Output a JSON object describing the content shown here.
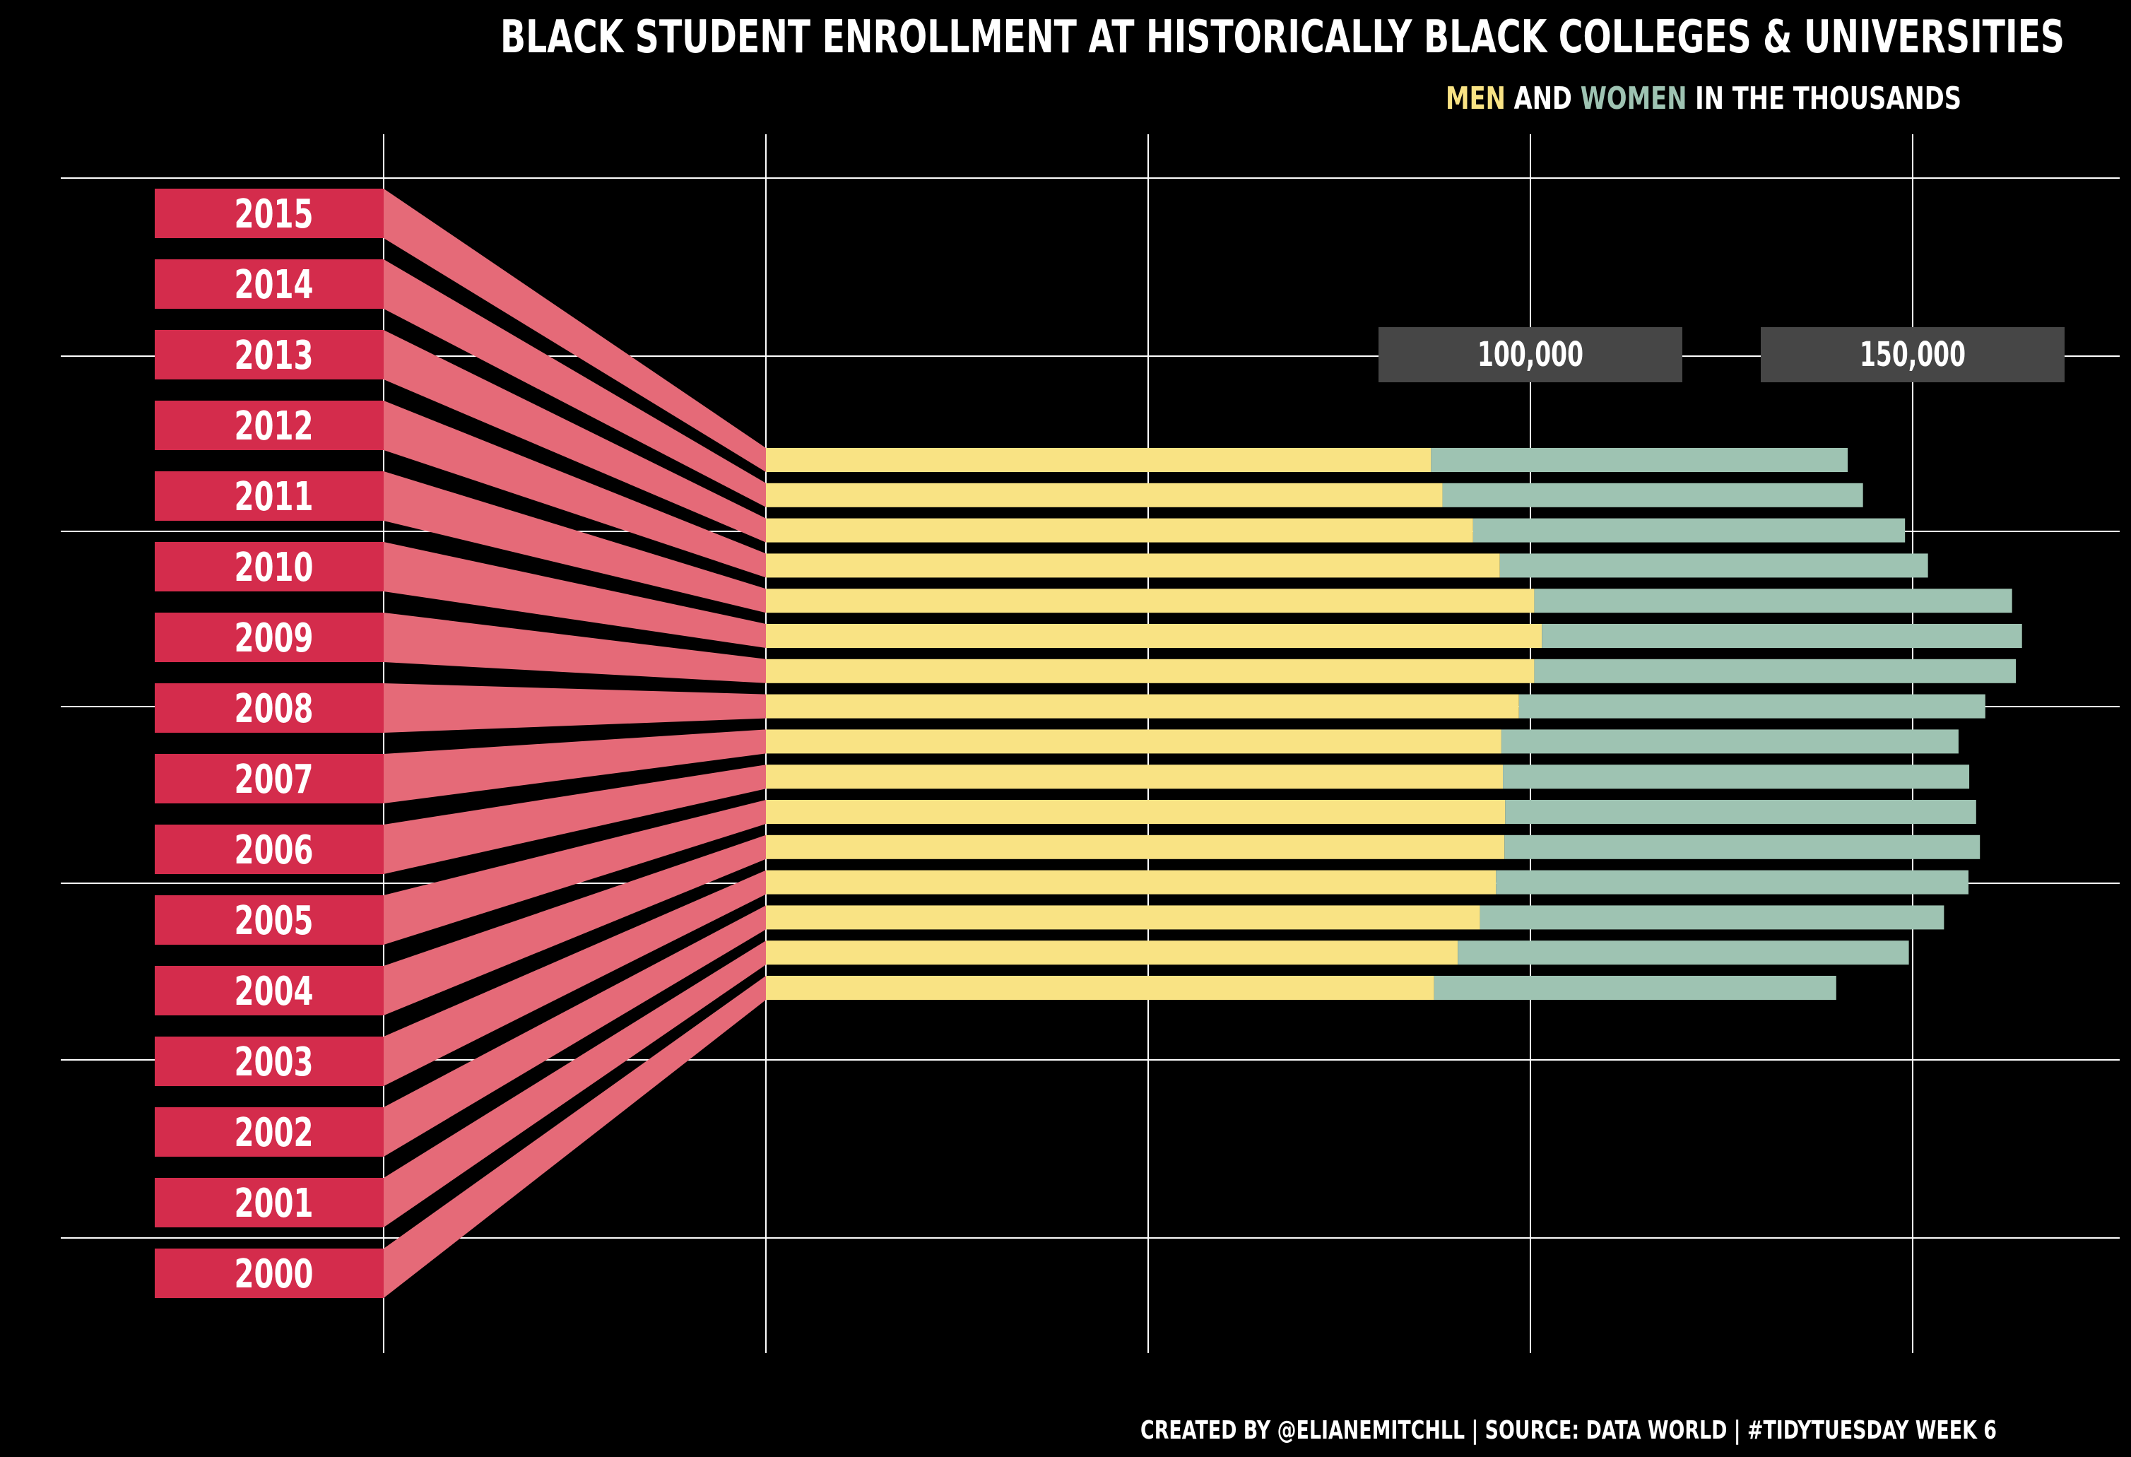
{
  "chart_data": {
    "type": "bar",
    "title": "BLACK STUDENT ENROLLMENT AT HISTORICALLY BLACK COLLEGES & UNIVERSITIES",
    "subtitle": {
      "men": "MEN",
      "and": " AND ",
      "women": "WOMEN",
      "rest": " IN THE THOUSANDS"
    },
    "categories": [
      "2015",
      "2014",
      "2013",
      "2012",
      "2011",
      "2010",
      "2009",
      "2008",
      "2007",
      "2006",
      "2005",
      "2004",
      "2003",
      "2002",
      "2001",
      "2000"
    ],
    "series": [
      {
        "name": "MEN",
        "values": [
          87000,
          88500,
          92500,
          96000,
          100500,
          101500,
          100500,
          98500,
          96200,
          96400,
          96700,
          96600,
          95500,
          93400,
          90500,
          87400
        ]
      },
      {
        "name": "WOMEN",
        "values": [
          54500,
          55000,
          56500,
          56000,
          62500,
          62800,
          63000,
          61000,
          59800,
          61000,
          61600,
          62200,
          61800,
          60700,
          59000,
          52600
        ]
      }
    ],
    "xlim": [
      -50000,
      175000
    ],
    "x_gridlines": [
      -50000,
      0,
      50000,
      100000,
      150000
    ],
    "tick_labels": [
      "100,000",
      "150,000"
    ],
    "stacked": true,
    "colors": {
      "men": "#f9e384",
      "women": "#9ec3b2",
      "year_box": "#d42c4c",
      "connector": "#e56a78",
      "tick_box": "#464646",
      "grid": "#ffffff",
      "background": "#000000"
    },
    "caption": "CREATED BY @ELIANEMITCHLL | SOURCE: DATA WORLD | #TIDYTUESDAY WEEK 6"
  }
}
